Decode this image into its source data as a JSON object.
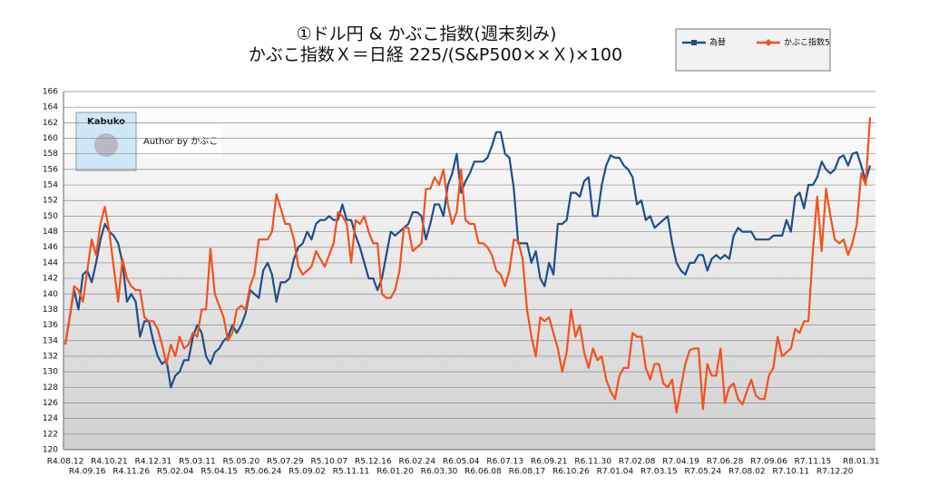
{
  "chart_data": {
    "type": "line",
    "title": "①ドル円 & かぶこ指数(週末刻み)",
    "subtitle": "かぶこ指数Ｘ＝日経 225/(S&P500××Ｘ)×100",
    "logo_text": "Kabuko",
    "author": "Author by かぶこ",
    "categories": [
      "R4.08.12",
      null,
      null,
      null,
      null,
      "R4.09.16",
      null,
      null,
      null,
      null,
      "R4.10.21",
      null,
      null,
      null,
      null,
      "R4.11.26",
      null,
      null,
      null,
      null,
      "R4.12.31",
      null,
      null,
      null,
      null,
      "R5.02.04",
      null,
      null,
      null,
      null,
      "R5.03.11",
      null,
      null,
      null,
      null,
      "R5.04.15",
      null,
      null,
      null,
      null,
      "R5.05.20",
      null,
      null,
      null,
      null,
      "R5.06.24",
      null,
      null,
      null,
      null,
      "R5.07.29",
      null,
      null,
      null,
      null,
      "R5.09.02",
      null,
      null,
      null,
      null,
      "R5.10.07",
      null,
      null,
      null,
      null,
      "R5.11.11",
      null,
      null,
      null,
      null,
      "R5.12.16",
      null,
      null,
      null,
      null,
      "R6.01.20",
      null,
      null,
      null,
      null,
      "R6.02.24",
      null,
      null,
      null,
      null,
      "R6.03.30",
      null,
      null,
      null,
      null,
      "R6.05.04",
      null,
      null,
      null,
      null,
      "R6.06.08",
      null,
      null,
      null,
      null,
      "R6.07.13",
      null,
      null,
      null,
      null,
      "R6.08.17",
      null,
      null,
      null,
      null,
      "R6.09.21",
      null,
      null,
      null,
      null,
      "R6.10.26",
      null,
      null,
      null,
      null,
      "R6.11.30",
      null,
      null,
      null,
      null,
      "R7.01.04",
      null,
      null,
      null,
      null,
      "R7.02.08",
      null,
      null,
      null,
      null,
      "R7.03.15",
      null,
      null,
      null,
      null,
      "R7.04.19",
      null,
      null,
      null,
      null,
      "R7.05.24",
      null,
      null,
      null,
      null,
      "R7.06.28",
      null,
      null,
      null,
      null,
      "R7.08.02",
      null,
      null,
      null,
      null,
      "R7.09.06",
      null,
      null,
      null,
      null,
      "R7.10.11",
      null,
      null,
      null,
      null,
      "R7.11.15",
      null,
      null,
      null,
      null,
      "R7.12.20",
      null,
      null,
      null,
      null,
      null,
      "R8.01.31",
      null,
      null
    ],
    "series": [
      {
        "name": "為替",
        "color": "#1f4e8c",
        "values": [
          133.5,
          137,
          140.5,
          138,
          142.5,
          143,
          141.5,
          144,
          147,
          149,
          148,
          147.5,
          146.5,
          144,
          139,
          140,
          139,
          134.5,
          136.5,
          136.5,
          134,
          132,
          131,
          131.5,
          128,
          129.5,
          130,
          131.5,
          131.5,
          134.5,
          136,
          135,
          132,
          131,
          132.5,
          133,
          134,
          134.5,
          136,
          135,
          136,
          137.5,
          140.5,
          140,
          139.5,
          143,
          144,
          142.5,
          139,
          141.5,
          141.5,
          142,
          144.5,
          146,
          146.5,
          148,
          147,
          149,
          149.5,
          149.5,
          150,
          149.5,
          149.5,
          151.5,
          149.5,
          149.5,
          147.5,
          146,
          144,
          142,
          142,
          140.5,
          142,
          145,
          148,
          147.5,
          148,
          148.5,
          149,
          150.5,
          150.5,
          150,
          147,
          149,
          151.5,
          151.5,
          150,
          154,
          155.5,
          158,
          153,
          154.5,
          155.5,
          157,
          157,
          157,
          157.5,
          159,
          160.8,
          160.8,
          158,
          157.5,
          153.5,
          146.5,
          146.5,
          146.5,
          144,
          145.5,
          142,
          141,
          144,
          142.5,
          149,
          149,
          149.5,
          153,
          153,
          152.5,
          154.5,
          155,
          150,
          150,
          154,
          156.5,
          157.8,
          157.5,
          157.5,
          156.5,
          156,
          155,
          151.5,
          152,
          149.5,
          150,
          148.5,
          149,
          149.5,
          150,
          146.5,
          144,
          143,
          142.5,
          144,
          144,
          145,
          145,
          143,
          144.5,
          145,
          144.5,
          145,
          144.5,
          147.5,
          148.5,
          148,
          148,
          148,
          147,
          147,
          147,
          147,
          147.5,
          147.5,
          147.5,
          149.5,
          148,
          152.5,
          153,
          151,
          154,
          154,
          155,
          157,
          156,
          155.5,
          156,
          157.5,
          157.8,
          156.5,
          158,
          158.2,
          156.5,
          154.5,
          156.5
        ]
      },
      {
        "name": "かぶこ指数5",
        "color": "#f4511e",
        "values": [
          133.5,
          137,
          141,
          140.5,
          139,
          143,
          147,
          145,
          149,
          151.2,
          148,
          143.5,
          139,
          144.5,
          142,
          141,
          140.5,
          140.5,
          137,
          136.5,
          136.5,
          135.5,
          133.5,
          131,
          133.5,
          132,
          134.5,
          133,
          133.5,
          135,
          134.5,
          138,
          138,
          145.8,
          140,
          138.5,
          137,
          134,
          135,
          138,
          138.5,
          138,
          141,
          142.5,
          147,
          147,
          147,
          148,
          152.8,
          151,
          149,
          149,
          147,
          143.5,
          142.5,
          143,
          143.5,
          145.5,
          144.5,
          143.5,
          145,
          146.5,
          150.5,
          150,
          149,
          144,
          149.5,
          149,
          150,
          148,
          146.5,
          146.5,
          140,
          139.5,
          139.5,
          140.5,
          143,
          148.5,
          148.5,
          145.5,
          146,
          146.5,
          153.5,
          153.5,
          155,
          154,
          156,
          151.5,
          149,
          150.5,
          156,
          149.5,
          149,
          149,
          146.5,
          146.5,
          146,
          145,
          143,
          142.5,
          141,
          143,
          147,
          146.8,
          144.5,
          138,
          134.5,
          132,
          137,
          136.5,
          137,
          135,
          133,
          130,
          132.5,
          138,
          134.5,
          136,
          132.5,
          130.5,
          133,
          131.5,
          132,
          129,
          127.5,
          126.5,
          129.5,
          130.5,
          130.5,
          135,
          134.5,
          134.5,
          130.5,
          129,
          131,
          131,
          128.5,
          128,
          129,
          124.8,
          128,
          131,
          132.8,
          133,
          133,
          125.2,
          131,
          129.5,
          129.5,
          133,
          126,
          128,
          128.5,
          126.5,
          125.8,
          127.5,
          129,
          127,
          126.5,
          126.5,
          129.5,
          130.5,
          134.5,
          132,
          132.5,
          133,
          135.5,
          135,
          136.5,
          136.5,
          145.5,
          152.5,
          145.5,
          153.5,
          150,
          147,
          146.5,
          147,
          145,
          146.5,
          149,
          155.5,
          154,
          162.7
        ]
      }
    ],
    "ylim": [
      120,
      166
    ],
    "yticks": [
      120,
      122,
      124,
      126,
      128,
      130,
      132,
      134,
      136,
      138,
      140,
      142,
      144,
      146,
      148,
      150,
      152,
      154,
      156,
      158,
      160,
      162,
      164,
      166
    ],
    "grid": true
  }
}
